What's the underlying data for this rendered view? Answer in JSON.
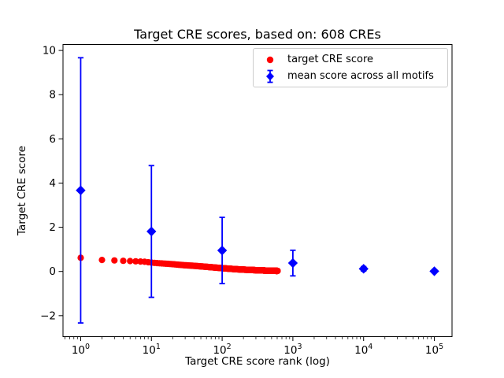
{
  "title": "Target CRE scores, based on: 608 CREs",
  "axes": {
    "xlabel": "Target CRE score rank (log)",
    "ylabel": "Target CRE score"
  },
  "legend": {
    "position": "upper right",
    "items": [
      {
        "label": "target CRE score",
        "marker": "circle",
        "color": "#ff0000"
      },
      {
        "label": "mean score across all motifs",
        "marker": "diamond-errorbar",
        "color": "#0000ff"
      }
    ]
  },
  "colors": {
    "red_series": "#ff0000",
    "blue_series": "#0000ff",
    "frame": "#000000",
    "legend_border": "#cccccc",
    "background": "#ffffff"
  },
  "chart_data": {
    "type": "scatter",
    "title": "Target CRE scores, based on: 608 CREs",
    "xlabel": "Target CRE score rank (log)",
    "ylabel": "Target CRE score",
    "x_scale": "log",
    "grid": false,
    "legend_position": "upper right",
    "xlim_log10": [
      -0.25,
      5.25
    ],
    "ylim": [
      -2.95,
      10.27
    ],
    "x_major_tick_exponents": [
      0,
      1,
      2,
      3,
      4,
      5
    ],
    "y_ticks": [
      -2,
      0,
      2,
      4,
      6,
      8,
      10
    ],
    "series": [
      {
        "name": "target CRE score",
        "marker": "circle",
        "color": "#ff0000",
        "n_points": 608,
        "x_description": "CRE score rank 1..608 (log spaced on axis)",
        "anchors_rank_score": [
          [
            1,
            0.62
          ],
          [
            2,
            0.52
          ],
          [
            3,
            0.5
          ],
          [
            4,
            0.48
          ],
          [
            5,
            0.47
          ],
          [
            6,
            0.46
          ],
          [
            8,
            0.44
          ],
          [
            10,
            0.4
          ],
          [
            13,
            0.37
          ],
          [
            16,
            0.35
          ],
          [
            20,
            0.33
          ],
          [
            25,
            0.3
          ],
          [
            30,
            0.28
          ],
          [
            40,
            0.255
          ],
          [
            50,
            0.23
          ],
          [
            65,
            0.2
          ],
          [
            80,
            0.175
          ],
          [
            100,
            0.15
          ],
          [
            130,
            0.12
          ],
          [
            160,
            0.1
          ],
          [
            200,
            0.082
          ],
          [
            250,
            0.068
          ],
          [
            300,
            0.058
          ],
          [
            400,
            0.042
          ],
          [
            500,
            0.032
          ],
          [
            608,
            0.025
          ]
        ]
      },
      {
        "name": "mean score across all motifs",
        "marker": "diamond",
        "color": "#0000ff",
        "points": [
          {
            "x": 1,
            "mean": 3.67,
            "std": 6.0
          },
          {
            "x": 10,
            "mean": 1.81,
            "std": 2.98
          },
          {
            "x": 100,
            "mean": 0.95,
            "std": 1.5
          },
          {
            "x": 1000,
            "mean": 0.38,
            "std": 0.58
          },
          {
            "x": 10000,
            "mean": 0.12,
            "std": 0.1
          },
          {
            "x": 100000,
            "mean": 0.01,
            "std": 0.04
          }
        ]
      }
    ]
  }
}
